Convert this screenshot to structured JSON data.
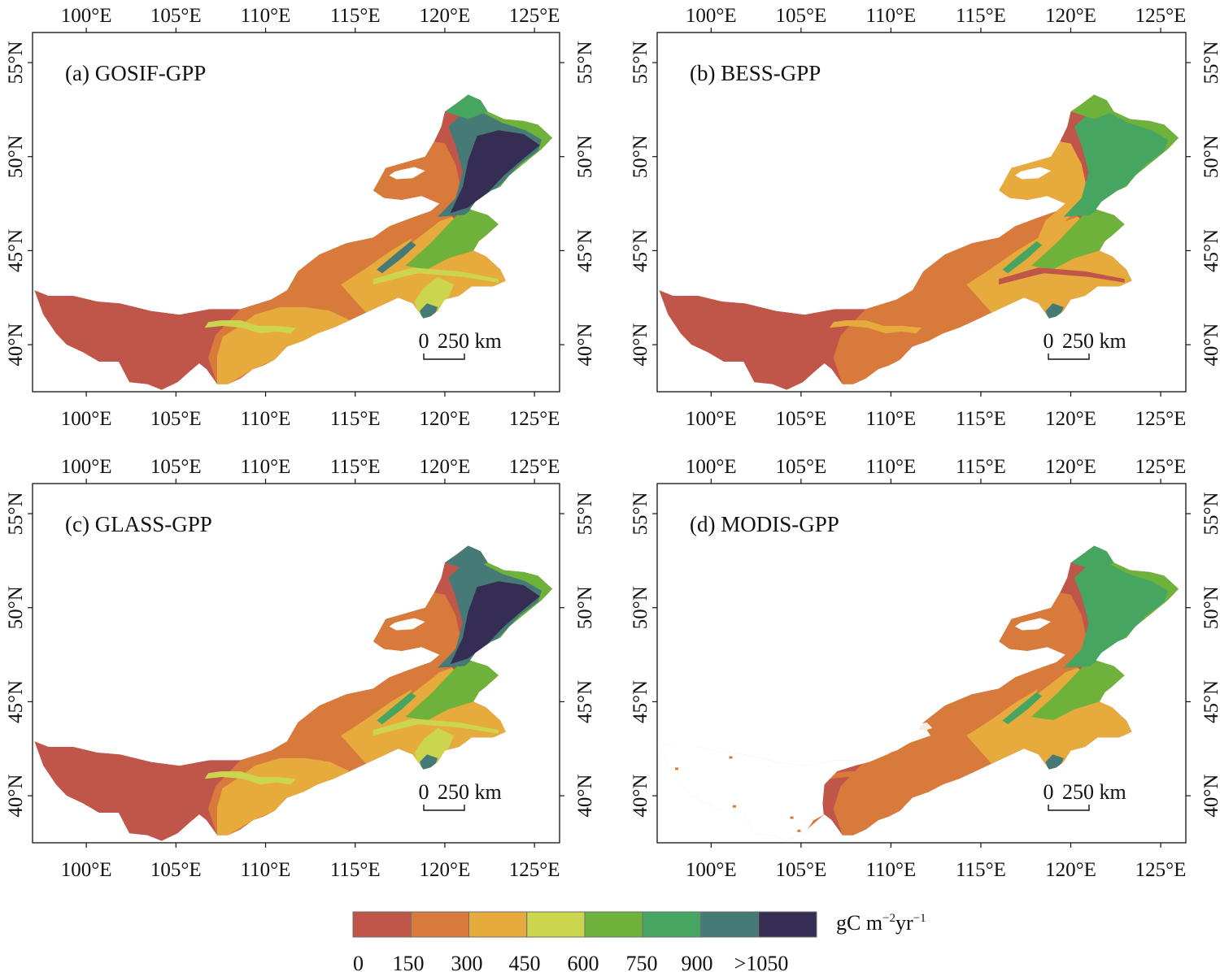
{
  "panels": [
    {
      "label": "(a) GOSIF-GPP",
      "scale_zero": "0",
      "scale_text": "250 km",
      "mode": "a"
    },
    {
      "label": "(b) BESS-GPP",
      "scale_zero": "0",
      "scale_text": "250 km",
      "mode": "b"
    },
    {
      "label": "(c) GLASS-GPP",
      "scale_zero": "0",
      "scale_text": "250 km",
      "mode": "c"
    },
    {
      "label": "(d) MODIS-GPP",
      "scale_zero": "0",
      "scale_text": "250 km",
      "mode": "d"
    }
  ],
  "axes": {
    "lon_labels": [
      "100°E",
      "105°E",
      "110°E",
      "115°E",
      "120°E",
      "125°E"
    ],
    "lat_labels": [
      "40°N",
      "45°N",
      "50°N",
      "55°N"
    ],
    "lon_values": [
      100,
      105,
      110,
      115,
      120,
      125
    ],
    "lat_values": [
      40,
      45,
      50,
      55
    ],
    "lon_range": [
      97,
      126.4
    ],
    "lat_range": [
      37.5,
      56.6
    ]
  },
  "legend": {
    "unit_main": "gC m",
    "unit_sup1": "−2",
    "unit_mid": "yr",
    "unit_sup2": "−1",
    "bins": [
      {
        "color": "#c0564a"
      },
      {
        "color": "#d87a3b"
      },
      {
        "color": "#e6aa3d"
      },
      {
        "color": "#cbd64e"
      },
      {
        "color": "#6eb23c"
      },
      {
        "color": "#45a561"
      },
      {
        "color": "#467a77"
      },
      {
        "color": "#352d53"
      }
    ],
    "tick_labels": [
      "0",
      "150",
      "300",
      "450",
      "600",
      "750",
      "900",
      ">1050"
    ]
  }
}
